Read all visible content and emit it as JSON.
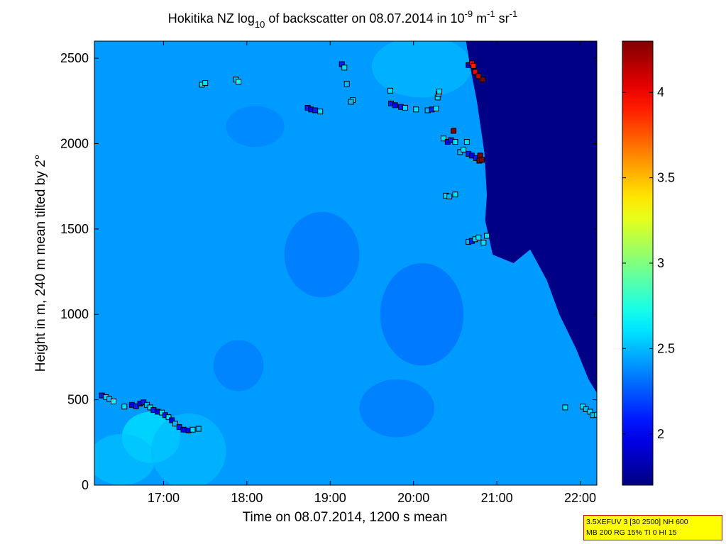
{
  "chart_data": {
    "type": "heatmap",
    "title": {
      "part1": "Hokitika NZ log",
      "sub": "10",
      "part2": " of backscatter on 08.07.2014 in 10",
      "sup1": "-9",
      "part3": " m",
      "sup2": "-1",
      "part4": " sr",
      "sup3": "-1"
    },
    "xlabel": "Time on 08.07.2014, 1200 s mean",
    "ylabel": "Height in m, 240 m mean tilted by 2°",
    "xlim_hours": [
      16.17,
      22.2
    ],
    "ylim": [
      0,
      2600
    ],
    "x_ticks": [
      {
        "h": 17,
        "label": "17:00"
      },
      {
        "h": 18,
        "label": "18:00"
      },
      {
        "h": 19,
        "label": "19:00"
      },
      {
        "h": 20,
        "label": "20:00"
      },
      {
        "h": 21,
        "label": "21:00"
      },
      {
        "h": 22,
        "label": "22:00"
      }
    ],
    "y_ticks": [
      {
        "v": 0,
        "label": "0"
      },
      {
        "v": 500,
        "label": "500"
      },
      {
        "v": 1000,
        "label": "1000"
      },
      {
        "v": 1500,
        "label": "1500"
      },
      {
        "v": 2000,
        "label": "2000"
      },
      {
        "v": 2500,
        "label": "2500"
      }
    ],
    "colorbar": {
      "colormap": "jet",
      "range": [
        1.7,
        4.3
      ],
      "ticks": [
        {
          "v": 2,
          "label": "2"
        },
        {
          "v": 2.5,
          "label": "2.5"
        },
        {
          "v": 3,
          "label": "3"
        },
        {
          "v": 3.5,
          "label": "3.5"
        },
        {
          "v": 4,
          "label": "4"
        }
      ]
    },
    "field": {
      "background_value": 2.42,
      "low_signal_value": 1.72,
      "low_signal_boundary": [
        {
          "h": 20.63,
          "y": 2600
        },
        {
          "h": 20.68,
          "y": 2450
        },
        {
          "h": 20.76,
          "y": 2250
        },
        {
          "h": 20.85,
          "y": 1950
        },
        {
          "h": 20.88,
          "y": 1700
        },
        {
          "h": 20.86,
          "y": 1550
        },
        {
          "h": 20.95,
          "y": 1350
        },
        {
          "h": 21.2,
          "y": 1300
        },
        {
          "h": 21.4,
          "y": 1380
        },
        {
          "h": 21.6,
          "y": 1200
        },
        {
          "h": 21.75,
          "y": 1000
        },
        {
          "h": 21.95,
          "y": 800
        },
        {
          "h": 22.1,
          "y": 620
        },
        {
          "h": 22.2,
          "y": 540
        }
      ],
      "patches": [
        {
          "h": 16.85,
          "y": 280,
          "rh": 0.35,
          "ry": 150,
          "v": 2.62
        },
        {
          "h": 16.5,
          "y": 150,
          "rh": 0.4,
          "ry": 150,
          "v": 2.52
        },
        {
          "h": 17.3,
          "y": 200,
          "rh": 0.45,
          "ry": 220,
          "v": 2.5
        },
        {
          "h": 20.1,
          "y": 2450,
          "rh": 0.6,
          "ry": 180,
          "v": 2.5
        },
        {
          "h": 18.9,
          "y": 1350,
          "rh": 0.45,
          "ry": 250,
          "v": 2.32
        },
        {
          "h": 20.1,
          "y": 1000,
          "rh": 0.5,
          "ry": 300,
          "v": 2.3
        },
        {
          "h": 17.9,
          "y": 700,
          "rh": 0.3,
          "ry": 150,
          "v": 2.34
        },
        {
          "h": 19.8,
          "y": 450,
          "rh": 0.45,
          "ry": 170,
          "v": 2.33
        },
        {
          "h": 18.1,
          "y": 2100,
          "rh": 0.35,
          "ry": 120,
          "v": 2.36
        }
      ]
    },
    "series": [
      {
        "marker": "square",
        "points": [
          [
            16.26,
            525,
            2.1
          ],
          [
            16.31,
            515,
            2.6
          ],
          [
            16.35,
            505,
            2.5
          ],
          [
            16.4,
            490,
            2.7
          ],
          [
            16.53,
            460,
            2.6
          ],
          [
            16.62,
            470,
            2.0
          ],
          [
            16.67,
            462,
            2.1
          ],
          [
            16.72,
            478,
            2.0
          ],
          [
            16.76,
            485,
            2.1
          ],
          [
            16.8,
            470,
            2.5
          ],
          [
            16.84,
            455,
            2.6
          ],
          [
            16.88,
            440,
            2.1
          ],
          [
            16.93,
            430,
            2.0
          ],
          [
            16.98,
            425,
            2.6
          ],
          [
            17.02,
            410,
            2.1
          ],
          [
            17.06,
            398,
            2.6
          ],
          [
            17.1,
            380,
            2.0
          ],
          [
            17.14,
            360,
            2.5
          ],
          [
            17.19,
            340,
            2.1
          ],
          [
            17.24,
            325,
            2.0
          ],
          [
            17.3,
            320,
            2.0
          ],
          [
            17.35,
            325,
            2.6
          ],
          [
            17.42,
            330,
            2.5
          ],
          [
            17.46,
            2345,
            2.6
          ],
          [
            17.5,
            2355,
            2.6
          ],
          [
            17.87,
            2375,
            2.5
          ],
          [
            17.9,
            2362,
            2.7
          ],
          [
            18.73,
            2210,
            2.1
          ],
          [
            18.77,
            2200,
            2.0
          ],
          [
            18.82,
            2195,
            2.1
          ],
          [
            18.88,
            2188,
            2.6
          ],
          [
            19.14,
            2465,
            2.1
          ],
          [
            19.17,
            2445,
            2.6
          ],
          [
            19.2,
            2350,
            2.5
          ],
          [
            19.27,
            2255,
            2.6
          ],
          [
            19.25,
            2245,
            2.5
          ],
          [
            19.72,
            2310,
            2.6
          ],
          [
            19.73,
            2235,
            2.1
          ],
          [
            19.78,
            2225,
            2.0
          ],
          [
            19.85,
            2215,
            2.1
          ],
          [
            19.9,
            2210,
            2.6
          ],
          [
            20.03,
            2200,
            2.6
          ],
          [
            20.17,
            2195,
            2.5
          ],
          [
            20.22,
            2200,
            2.1
          ],
          [
            20.27,
            2205,
            2.6
          ],
          [
            20.29,
            2270,
            2.6
          ],
          [
            20.3,
            2290,
            2.5
          ],
          [
            20.31,
            2305,
            2.6
          ],
          [
            20.36,
            2030,
            2.6
          ],
          [
            20.41,
            2010,
            2.0
          ],
          [
            20.45,
            2020,
            2.1
          ],
          [
            20.48,
            2075,
            4.8
          ],
          [
            20.5,
            2010,
            2.6
          ],
          [
            20.56,
            1950,
            2.5
          ],
          [
            20.6,
            1965,
            2.6
          ],
          [
            20.64,
            2010,
            2.6
          ],
          [
            20.66,
            1940,
            2.1
          ],
          [
            20.7,
            1930,
            2.0
          ],
          [
            20.75,
            1915,
            2.1
          ],
          [
            20.79,
            1900,
            4.8
          ],
          [
            20.8,
            1930,
            4.8
          ],
          [
            20.82,
            1905,
            4.8
          ],
          [
            20.39,
            1695,
            2.6
          ],
          [
            20.43,
            1690,
            2.5
          ],
          [
            20.5,
            1702,
            2.6
          ],
          [
            20.66,
            1425,
            2.5
          ],
          [
            20.7,
            1430,
            2.1
          ],
          [
            20.74,
            1440,
            2.6
          ],
          [
            20.78,
            1450,
            2.6
          ],
          [
            20.84,
            1420,
            2.6
          ],
          [
            20.88,
            1460,
            2.6
          ],
          [
            20.66,
            2460,
            2.0
          ],
          [
            20.7,
            2470,
            4.0
          ],
          [
            20.72,
            2455,
            3.9
          ],
          [
            20.74,
            2420,
            4.0
          ],
          [
            20.78,
            2395,
            4.1
          ],
          [
            20.83,
            2375,
            4.8
          ],
          [
            21.82,
            455,
            2.6
          ],
          [
            22.03,
            460,
            2.6
          ],
          [
            22.07,
            445,
            2.5
          ],
          [
            22.12,
            430,
            2.6
          ],
          [
            22.15,
            410,
            2.5
          ],
          [
            22.2,
            412,
            2.6
          ]
        ]
      }
    ]
  },
  "info_box": {
    "line1": "3.5XEFUV 3 [30 2500] NH 600",
    "line2": "MB 200 RG 15% TI 0 HI 15"
  }
}
